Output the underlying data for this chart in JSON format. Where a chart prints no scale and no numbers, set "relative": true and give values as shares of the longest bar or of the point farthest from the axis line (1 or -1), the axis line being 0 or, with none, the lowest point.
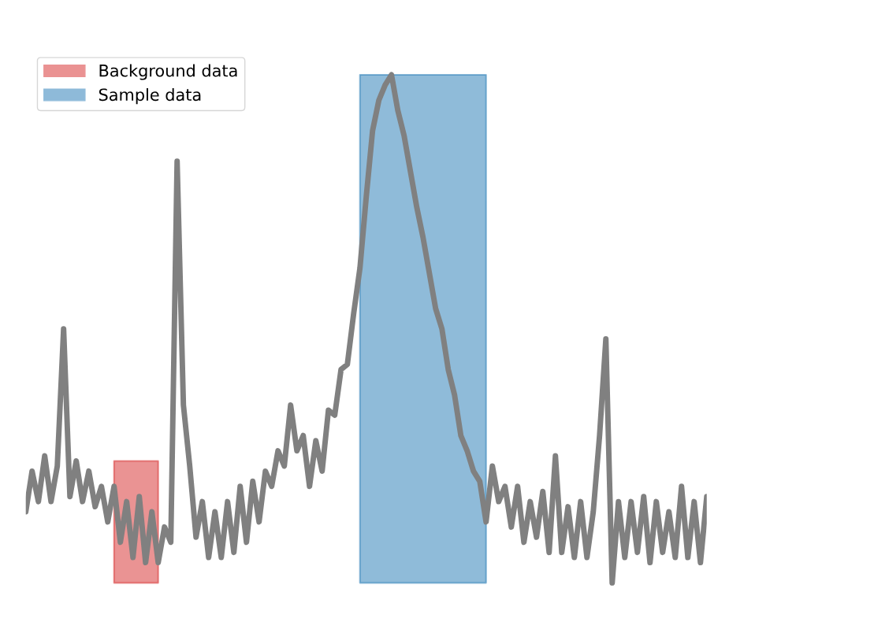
{
  "chart_data": {
    "type": "line",
    "relative": true,
    "categories": [
      null,
      null,
      null,
      null,
      null,
      null,
      null,
      null,
      null,
      null,
      null,
      null,
      null,
      null,
      null,
      null,
      null,
      null,
      null,
      null,
      null,
      null,
      null,
      null,
      null,
      null,
      null,
      null,
      null,
      null,
      null,
      null,
      null,
      null,
      null,
      null,
      null,
      null,
      null,
      null,
      null,
      null,
      null,
      null,
      null,
      null,
      null,
      null,
      null,
      null,
      null,
      null,
      null,
      null,
      null,
      null,
      null,
      null,
      null,
      null,
      null,
      null,
      null,
      null,
      null,
      null,
      null,
      null,
      null,
      null,
      null,
      null,
      null,
      null,
      null,
      null,
      null,
      null,
      null,
      null,
      null,
      null,
      null,
      null,
      null,
      null,
      null,
      null,
      null,
      null,
      null,
      null,
      null,
      null,
      null,
      null,
      null,
      null,
      null,
      null,
      null,
      null,
      null,
      null,
      null,
      null,
      null,
      null,
      null
    ],
    "series": [
      {
        "color": "#808080",
        "values": [
          0.14,
          0.22,
          0.16,
          0.25,
          0.16,
          0.23,
          0.5,
          0.17,
          0.24,
          0.16,
          0.22,
          0.15,
          0.19,
          0.12,
          0.19,
          0.08,
          0.16,
          0.05,
          0.17,
          0.04,
          0.14,
          0.04,
          0.11,
          0.08,
          0.83,
          0.35,
          0.23,
          0.09,
          0.16,
          0.05,
          0.14,
          0.05,
          0.16,
          0.06,
          0.19,
          0.08,
          0.2,
          0.12,
          0.22,
          0.19,
          0.26,
          0.23,
          0.35,
          0.26,
          0.29,
          0.19,
          0.28,
          0.22,
          0.34,
          0.33,
          0.42,
          0.43,
          0.53,
          0.62,
          0.76,
          0.89,
          0.95,
          0.98,
          1,
          0.93,
          0.88,
          0.81,
          0.74,
          0.68,
          0.61,
          0.54,
          0.5,
          0.42,
          0.37,
          0.29,
          0.26,
          0.22,
          0.2,
          0.12,
          0.23,
          0.16,
          0.19,
          0.11,
          0.19,
          0.08,
          0.16,
          0.09,
          0.18,
          0.06,
          0.25,
          0.06,
          0.15,
          0.05,
          0.16,
          0.05,
          0.14,
          0.29,
          0.48,
          0,
          0.16,
          0.05,
          0.16,
          0.06,
          0.17,
          0.04,
          0.16,
          0.06,
          0.14,
          0.05,
          0.19,
          0.05,
          0.16,
          0.04,
          0.17
        ]
      },
      {
        "type": "area",
        "name": "Background data",
        "color": "#d62728",
        "values": [
          null,
          null,
          null,
          null,
          null,
          null,
          null,
          null,
          null,
          null,
          null,
          null,
          null,
          null,
          0.24,
          0.24,
          0.24,
          0.24,
          0.24,
          0.24,
          0.24,
          0.24,
          null,
          null,
          null,
          null,
          null,
          null,
          null,
          null,
          null,
          null,
          null,
          null,
          null,
          null,
          null,
          null,
          null,
          null,
          null,
          null,
          null,
          null,
          null,
          null,
          null,
          null,
          null,
          null,
          null,
          null,
          null,
          null,
          null,
          null,
          null,
          null,
          null,
          null,
          null,
          null,
          null,
          null,
          null,
          null,
          null,
          null,
          null,
          null,
          null,
          null,
          null,
          null,
          null,
          null,
          null,
          null,
          null,
          null,
          null,
          null,
          null,
          null,
          null,
          null,
          null,
          null,
          null,
          null,
          null,
          null,
          null,
          null,
          null,
          null,
          null,
          null,
          null,
          null,
          null,
          null,
          null,
          null,
          null,
          null,
          null,
          null,
          null
        ]
      },
      {
        "type": "area",
        "name": "Sample data",
        "color": "#1f77b4",
        "values": [
          null,
          null,
          null,
          null,
          null,
          null,
          null,
          null,
          null,
          null,
          null,
          null,
          null,
          null,
          null,
          null,
          null,
          null,
          null,
          null,
          null,
          null,
          null,
          null,
          null,
          null,
          null,
          null,
          null,
          null,
          null,
          null,
          null,
          null,
          null,
          null,
          null,
          null,
          null,
          null,
          null,
          null,
          null,
          null,
          null,
          null,
          null,
          null,
          null,
          null,
          null,
          null,
          null,
          1,
          1,
          1,
          1,
          1,
          1,
          1,
          1,
          1,
          1,
          1,
          1,
          1,
          1,
          1,
          1,
          1,
          1,
          1,
          1,
          1,
          null,
          null,
          null,
          null,
          null,
          null,
          null,
          null,
          null,
          null,
          null,
          null,
          null,
          null,
          null,
          null,
          null,
          null,
          null,
          null,
          null,
          null,
          null,
          null,
          null,
          null,
          null,
          null,
          null,
          null,
          null,
          null,
          null,
          null,
          null
        ]
      }
    ],
    "legend": "top left"
  }
}
